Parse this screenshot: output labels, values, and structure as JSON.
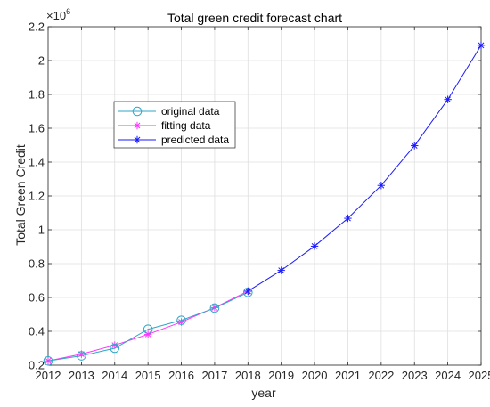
{
  "chart_data": {
    "type": "line",
    "title": "Total green credit forecast chart",
    "xlabel": "year",
    "ylabel": "Total Green Credit",
    "y_multiplier_base": "×10",
    "y_multiplier_exponent": "6",
    "xlim": [
      2012,
      2025
    ],
    "ylim": [
      0.2,
      2.2
    ],
    "x_ticks": [
      "2012",
      "2013",
      "2014",
      "2015",
      "2016",
      "2017",
      "2018",
      "2019",
      "2020",
      "2021",
      "2022",
      "2023",
      "2024",
      "2025"
    ],
    "y_ticks": [
      "0.2",
      "0.4",
      "0.6",
      "0.8",
      "1",
      "1.2",
      "1.4",
      "1.6",
      "1.8",
      "2",
      "2.2"
    ],
    "grid": true,
    "legend_position": "upper-left",
    "series": [
      {
        "name": "original data",
        "color": "#2fa6c8",
        "marker": "circle",
        "x": [
          2012,
          2013,
          2014,
          2015,
          2016,
          2017,
          2018
        ],
        "y": [
          0.225,
          0.255,
          0.3,
          0.412,
          0.465,
          0.537,
          0.63
        ]
      },
      {
        "name": "fitting data",
        "color": "#ff33ff",
        "marker": "asterisk",
        "x": [
          2012,
          2013,
          2014,
          2015,
          2016,
          2017,
          2018
        ],
        "y": [
          0.225,
          0.265,
          0.318,
          0.382,
          0.455,
          0.54,
          0.637
        ]
      },
      {
        "name": "predicted data",
        "color": "#1a1aff",
        "marker": "asterisk",
        "x": [
          2018,
          2019,
          2020,
          2021,
          2022,
          2023,
          2024,
          2025
        ],
        "y": [
          0.637,
          0.76,
          0.903,
          1.068,
          1.262,
          1.497,
          1.77,
          2.09
        ]
      }
    ]
  }
}
